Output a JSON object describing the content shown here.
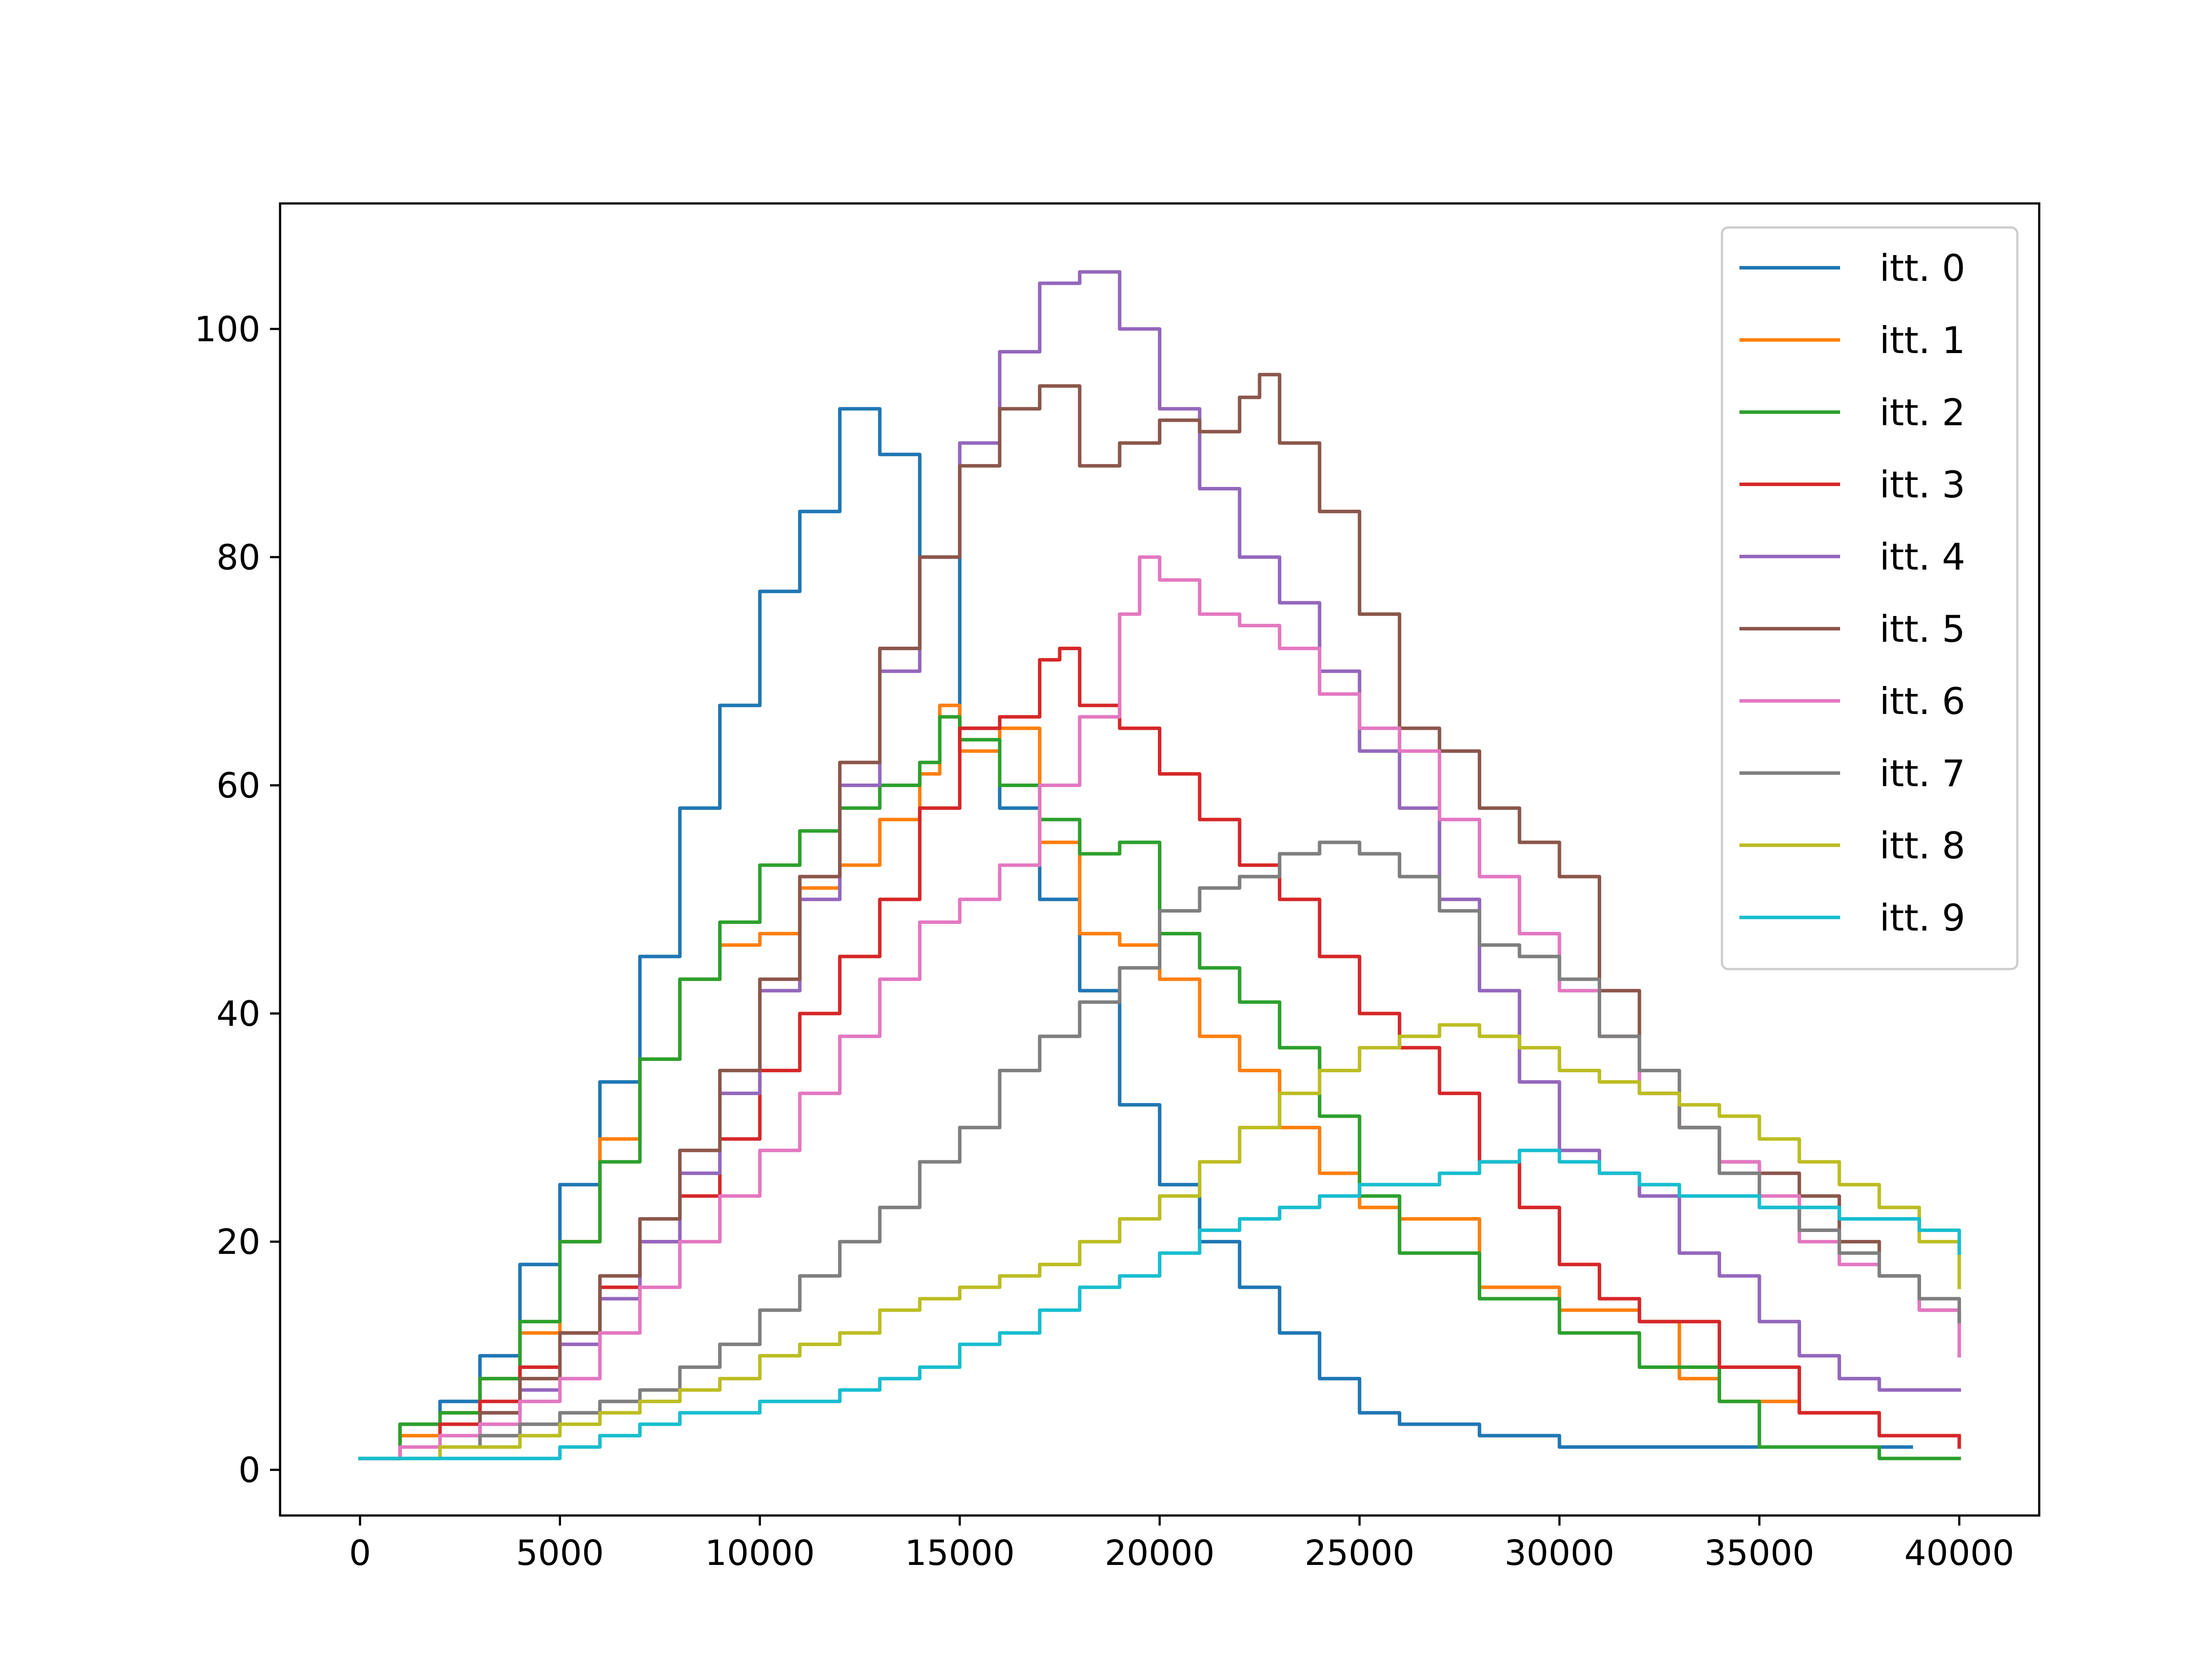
{
  "chart_data": {
    "type": "line",
    "title": "",
    "xlabel": "",
    "ylabel": "",
    "xlim": [
      -2000,
      42000
    ],
    "ylim": [
      -4,
      111
    ],
    "x_ticks": [
      0,
      5000,
      10000,
      15000,
      20000,
      25000,
      30000,
      35000,
      40000
    ],
    "x_tick_labels": [
      "0",
      "5000",
      "10000",
      "15000",
      "20000",
      "25000",
      "30000",
      "35000",
      "40000"
    ],
    "y_ticks": [
      0,
      20,
      40,
      60,
      80,
      100
    ],
    "y_tick_labels": [
      "0",
      "20",
      "40",
      "60",
      "80",
      "100"
    ],
    "grid": false,
    "legend_position": "top-right",
    "drawstyle": "steps-post",
    "series": [
      {
        "name": "itt. 0",
        "color": "#1f77b4",
        "x": [
          0,
          1000,
          2000,
          3000,
          4000,
          5000,
          6000,
          7000,
          8000,
          9000,
          10000,
          11000,
          12000,
          13000,
          14000,
          15000,
          16000,
          17000,
          18000,
          19000,
          20000,
          21000,
          22000,
          23000,
          24000,
          25000,
          26000,
          28000,
          30000,
          32000,
          35000,
          38000
        ],
        "y": [
          1,
          4,
          6,
          10,
          18,
          25,
          34,
          45,
          58,
          67,
          77,
          84,
          93,
          89,
          80,
          65,
          58,
          50,
          42,
          32,
          25,
          20,
          16,
          12,
          8,
          5,
          4,
          3,
          2,
          2,
          2,
          2
        ]
      },
      {
        "name": "itt. 1",
        "color": "#ff7f0e",
        "x": [
          0,
          1000,
          2000,
          3000,
          4000,
          5000,
          6000,
          7000,
          8000,
          9000,
          10000,
          11000,
          12000,
          13000,
          14000,
          14500,
          15000,
          16000,
          17000,
          18000,
          19000,
          20000,
          21000,
          22000,
          23000,
          24000,
          25000,
          26000,
          28000,
          30000,
          32000,
          33000,
          34000,
          36000,
          38000,
          40000
        ],
        "y": [
          1,
          3,
          5,
          8,
          12,
          20,
          29,
          36,
          43,
          46,
          47,
          51,
          53,
          57,
          61,
          67,
          63,
          65,
          55,
          47,
          46,
          43,
          38,
          35,
          30,
          26,
          23,
          22,
          16,
          14,
          13,
          8,
          6,
          5,
          3,
          3
        ]
      },
      {
        "name": "itt. 2",
        "color": "#2ca02c",
        "x": [
          0,
          1000,
          2000,
          3000,
          4000,
          5000,
          6000,
          7000,
          8000,
          9000,
          10000,
          11000,
          12000,
          13000,
          14000,
          14500,
          15000,
          16000,
          17000,
          18000,
          19000,
          20000,
          21000,
          22000,
          23000,
          24000,
          25000,
          26000,
          28000,
          30000,
          32000,
          34000,
          35000,
          36000,
          38000,
          40000
        ],
        "y": [
          1,
          4,
          5,
          8,
          13,
          20,
          27,
          36,
          43,
          48,
          53,
          56,
          58,
          60,
          62,
          66,
          64,
          60,
          57,
          54,
          55,
          47,
          44,
          41,
          37,
          31,
          24,
          19,
          15,
          12,
          9,
          6,
          2,
          2,
          1,
          1
        ]
      },
      {
        "name": "itt. 3",
        "color": "#d62728",
        "x": [
          0,
          1000,
          2000,
          3000,
          4000,
          5000,
          6000,
          7000,
          8000,
          9000,
          10000,
          11000,
          12000,
          13000,
          14000,
          15000,
          16000,
          17000,
          17500,
          18000,
          19000,
          20000,
          21000,
          22000,
          23000,
          24000,
          25000,
          26000,
          27000,
          28000,
          29000,
          30000,
          31000,
          32000,
          34000,
          36000,
          38000,
          40000
        ],
        "y": [
          1,
          2,
          4,
          6,
          9,
          12,
          16,
          20,
          24,
          29,
          35,
          40,
          45,
          50,
          58,
          65,
          66,
          71,
          72,
          67,
          65,
          61,
          57,
          53,
          50,
          45,
          40,
          37,
          33,
          27,
          23,
          18,
          15,
          13,
          9,
          5,
          3,
          2
        ]
      },
      {
        "name": "itt. 4",
        "color": "#9467bd",
        "x": [
          0,
          1000,
          2000,
          3000,
          4000,
          5000,
          6000,
          7000,
          8000,
          9000,
          10000,
          11000,
          12000,
          13000,
          14000,
          15000,
          16000,
          17000,
          18000,
          19000,
          20000,
          21000,
          22000,
          23000,
          24000,
          25000,
          26000,
          27000,
          28000,
          29000,
          30000,
          31000,
          32000,
          33000,
          34000,
          35000,
          36000,
          37000,
          38000,
          40000
        ],
        "y": [
          1,
          2,
          3,
          5,
          7,
          11,
          15,
          20,
          26,
          33,
          42,
          50,
          60,
          70,
          80,
          90,
          98,
          104,
          105,
          100,
          93,
          86,
          80,
          76,
          70,
          63,
          58,
          50,
          42,
          34,
          28,
          26,
          24,
          19,
          17,
          13,
          10,
          8,
          7,
          7
        ]
      },
      {
        "name": "itt. 5",
        "color": "#8c564b",
        "x": [
          0,
          1000,
          2000,
          3000,
          4000,
          5000,
          6000,
          7000,
          8000,
          9000,
          10000,
          11000,
          12000,
          13000,
          14000,
          15000,
          16000,
          17000,
          18000,
          19000,
          20000,
          21000,
          22000,
          22500,
          23000,
          24000,
          25000,
          26000,
          27000,
          28000,
          29000,
          30000,
          31000,
          32000,
          33000,
          34000,
          35000,
          36000,
          37000,
          38000,
          39000,
          40000
        ],
        "y": [
          1,
          2,
          3,
          5,
          8,
          12,
          17,
          22,
          28,
          35,
          43,
          52,
          62,
          72,
          80,
          88,
          93,
          95,
          88,
          90,
          92,
          91,
          94,
          96,
          90,
          84,
          75,
          65,
          63,
          58,
          55,
          52,
          42,
          33,
          30,
          27,
          26,
          24,
          20,
          17,
          14,
          13
        ]
      },
      {
        "name": "itt. 6",
        "color": "#e377c2",
        "x": [
          0,
          1000,
          2000,
          3000,
          4000,
          5000,
          6000,
          7000,
          8000,
          9000,
          10000,
          11000,
          12000,
          13000,
          14000,
          15000,
          16000,
          17000,
          18000,
          19000,
          19500,
          20000,
          21000,
          22000,
          23000,
          24000,
          25000,
          26000,
          27000,
          28000,
          29000,
          30000,
          31000,
          32000,
          33000,
          34000,
          35000,
          36000,
          37000,
          38000,
          39000,
          40000
        ],
        "y": [
          1,
          2,
          3,
          4,
          6,
          8,
          12,
          16,
          20,
          24,
          28,
          33,
          38,
          43,
          48,
          50,
          53,
          60,
          66,
          75,
          80,
          78,
          75,
          74,
          72,
          68,
          65,
          63,
          57,
          52,
          47,
          42,
          38,
          33,
          30,
          27,
          24,
          20,
          18,
          17,
          14,
          10
        ]
      },
      {
        "name": "itt. 7",
        "color": "#7f7f7f",
        "x": [
          0,
          1000,
          2000,
          3000,
          4000,
          5000,
          6000,
          7000,
          8000,
          9000,
          10000,
          11000,
          12000,
          13000,
          14000,
          15000,
          16000,
          17000,
          18000,
          19000,
          20000,
          21000,
          22000,
          23000,
          24000,
          25000,
          26000,
          27000,
          28000,
          29000,
          30000,
          31000,
          32000,
          33000,
          34000,
          35000,
          36000,
          37000,
          38000,
          39000,
          40000
        ],
        "y": [
          1,
          1,
          2,
          3,
          4,
          5,
          6,
          7,
          9,
          11,
          14,
          17,
          20,
          23,
          27,
          30,
          35,
          38,
          41,
          44,
          49,
          51,
          52,
          54,
          55,
          54,
          52,
          49,
          46,
          45,
          43,
          38,
          35,
          30,
          26,
          23,
          21,
          19,
          17,
          15,
          13
        ]
      },
      {
        "name": "itt. 8",
        "color": "#bcbd22",
        "x": [
          0,
          1000,
          2000,
          3000,
          4000,
          5000,
          6000,
          7000,
          8000,
          9000,
          10000,
          11000,
          12000,
          13000,
          14000,
          15000,
          16000,
          17000,
          18000,
          19000,
          20000,
          21000,
          22000,
          23000,
          24000,
          25000,
          26000,
          27000,
          28000,
          29000,
          30000,
          31000,
          32000,
          33000,
          34000,
          35000,
          36000,
          37000,
          38000,
          39000,
          40000
        ],
        "y": [
          1,
          1,
          2,
          2,
          3,
          4,
          5,
          6,
          7,
          8,
          10,
          11,
          12,
          14,
          15,
          16,
          17,
          18,
          20,
          22,
          24,
          27,
          30,
          33,
          35,
          37,
          38,
          39,
          38,
          37,
          35,
          34,
          33,
          32,
          31,
          29,
          27,
          25,
          23,
          20,
          16
        ]
      },
      {
        "name": "itt. 9",
        "color": "#17becf",
        "x": [
          0,
          1000,
          2000,
          3000,
          4000,
          5000,
          6000,
          7000,
          8000,
          9000,
          10000,
          11000,
          12000,
          13000,
          14000,
          15000,
          16000,
          17000,
          18000,
          19000,
          20000,
          21000,
          22000,
          23000,
          24000,
          25000,
          26000,
          27000,
          28000,
          29000,
          30000,
          31000,
          32000,
          33000,
          34000,
          35000,
          36000,
          37000,
          38000,
          39000,
          40000
        ],
        "y": [
          1,
          1,
          1,
          1,
          1,
          2,
          3,
          4,
          5,
          5,
          6,
          6,
          7,
          8,
          9,
          11,
          12,
          14,
          16,
          17,
          19,
          21,
          22,
          23,
          24,
          25,
          25,
          26,
          27,
          28,
          27,
          26,
          25,
          24,
          24,
          23,
          23,
          22,
          22,
          21,
          19
        ]
      }
    ]
  }
}
